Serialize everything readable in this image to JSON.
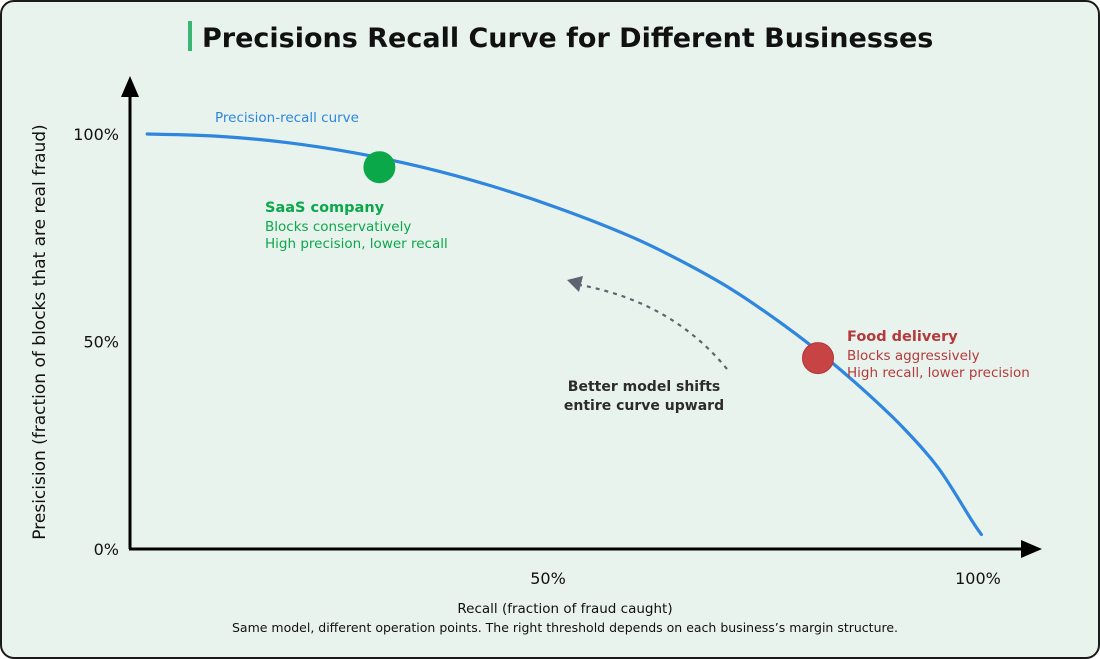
{
  "chart_data": {
    "type": "line",
    "title": "Precisions Recall Curve for Different Businesses",
    "xlabel": "Recall (fraction of fraud caught)",
    "ylabel": "Presicision (fraction of blocks that are real fraud)",
    "caption": "Same model, different operation points. The right threshold depends on each business’s margin structure.",
    "xlim": [
      0,
      1
    ],
    "ylim": [
      0,
      1
    ],
    "x_ticks": [
      {
        "value": 0.5,
        "label": "50%"
      },
      {
        "value": 1.0,
        "label": "100%"
      }
    ],
    "y_ticks": [
      {
        "value": 0.0,
        "label": "0%"
      },
      {
        "value": 0.5,
        "label": "50%"
      },
      {
        "value": 1.0,
        "label": "100%"
      }
    ],
    "grid": false,
    "series": [
      {
        "name": "Precision-recall curve",
        "color": "#2e86de",
        "points": [
          [
            0.02,
            1.0
          ],
          [
            0.1,
            0.995
          ],
          [
            0.18,
            0.98
          ],
          [
            0.26,
            0.955
          ],
          [
            0.34,
            0.92
          ],
          [
            0.42,
            0.875
          ],
          [
            0.5,
            0.82
          ],
          [
            0.58,
            0.755
          ],
          [
            0.64,
            0.695
          ],
          [
            0.7,
            0.625
          ],
          [
            0.76,
            0.54
          ],
          [
            0.81,
            0.46
          ],
          [
            0.86,
            0.37
          ],
          [
            0.9,
            0.29
          ],
          [
            0.94,
            0.195
          ],
          [
            0.98,
            0.065
          ],
          [
            0.99,
            0.035
          ]
        ]
      }
    ],
    "points_of_interest": [
      {
        "title": "SaaS company",
        "lines": [
          "Blocks conservatively",
          "High precision, lower recall"
        ],
        "x": 0.29,
        "y": 0.92,
        "color": "#0ba84a"
      },
      {
        "title": "Food delivery",
        "lines": [
          "Blocks aggressively",
          "High recall, lower precision"
        ],
        "x": 0.8,
        "y": 0.46,
        "color": "#c84444"
      }
    ],
    "annotation": {
      "lines": [
        "Better model shifts",
        "entire curve upward"
      ],
      "color": "#2c2c2c"
    }
  },
  "colors": {
    "background": "#e9f3ee",
    "title_accent": "#3bb574",
    "axis": "#000000",
    "text": "#111111",
    "arrow": "#5e6470"
  }
}
